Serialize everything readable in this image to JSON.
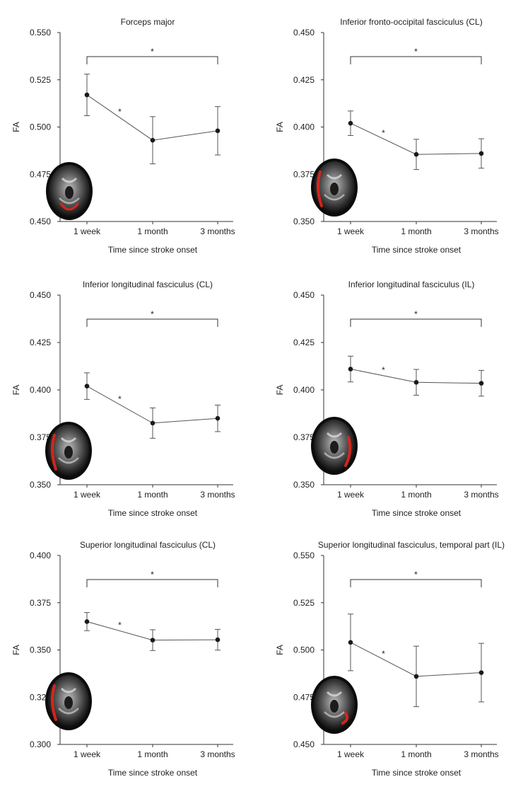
{
  "figure": {
    "common_x_label": "Time since stroke onset",
    "common_y_label": "FA"
  },
  "chart_data": [
    {
      "type": "line",
      "title": "Forceps major",
      "xlabel": "Time since stroke onset",
      "ylabel": "FA",
      "categories": [
        "1 week",
        "1 month",
        "3 months"
      ],
      "values": [
        0.517,
        0.493,
        0.498
      ],
      "errors": [
        0.011,
        0.0125,
        0.0128
      ],
      "ylim": [
        0.45,
        0.55
      ],
      "yticks": [
        "0.450",
        "0.475",
        "0.500",
        "0.525",
        "0.550"
      ],
      "bracket_label": "*",
      "pair_label": "*",
      "brain_highlight": "posterior"
    },
    {
      "type": "line",
      "title": "Inferior fronto-occipital fasciculus (CL)",
      "xlabel": "Time since stroke onset",
      "ylabel": "FA",
      "categories": [
        "1 week",
        "1 month",
        "3 months"
      ],
      "values": [
        0.402,
        0.3855,
        0.386
      ],
      "errors": [
        0.0065,
        0.008,
        0.0078
      ],
      "ylim": [
        0.35,
        0.45
      ],
      "yticks": [
        "0.350",
        "0.375",
        "0.400",
        "0.425",
        "0.450"
      ],
      "bracket_label": "*",
      "pair_label": "*",
      "brain_highlight": "left"
    },
    {
      "type": "line",
      "title": "Inferior longitudinal fasciculus (CL)",
      "xlabel": "Time since stroke onset",
      "ylabel": "FA",
      "categories": [
        "1 week",
        "1 month",
        "3 months"
      ],
      "values": [
        0.402,
        0.3825,
        0.385
      ],
      "errors": [
        0.007,
        0.008,
        0.007
      ],
      "ylim": [
        0.35,
        0.45
      ],
      "yticks": [
        "0.350",
        "0.375",
        "0.400",
        "0.425",
        "0.450"
      ],
      "bracket_label": "*",
      "pair_label": "*",
      "brain_highlight": "left"
    },
    {
      "type": "line",
      "title": "Inferior longitudinal fasciculus (IL)",
      "xlabel": "Time since stroke onset",
      "ylabel": "FA",
      "categories": [
        "1 week",
        "1 month",
        "3 months"
      ],
      "values": [
        0.411,
        0.404,
        0.4035
      ],
      "errors": [
        0.0068,
        0.0068,
        0.0068
      ],
      "ylim": [
        0.35,
        0.45
      ],
      "yticks": [
        "0.350",
        "0.375",
        "0.400",
        "0.425",
        "0.450"
      ],
      "bracket_label": "*",
      "pair_label": "*",
      "brain_highlight": "right"
    },
    {
      "type": "line",
      "title": "Superior longitudinal fasciculus (CL)",
      "xlabel": "Time since stroke onset",
      "ylabel": "FA",
      "categories": [
        "1 week",
        "1 month",
        "3 months"
      ],
      "values": [
        0.365,
        0.3552,
        0.3554
      ],
      "errors": [
        0.0048,
        0.0055,
        0.0055
      ],
      "ylim": [
        0.3,
        0.4
      ],
      "yticks": [
        "0.300",
        "0.325",
        "0.350",
        "0.375",
        "0.400"
      ],
      "bracket_label": "*",
      "pair_label": "*",
      "brain_highlight": "left"
    },
    {
      "type": "line",
      "title": "Superior longitudinal fasciculus, temporal part (IL)",
      "xlabel": "Time since stroke onset",
      "ylabel": "FA",
      "categories": [
        "1 week",
        "1 month",
        "3 months"
      ],
      "values": [
        0.504,
        0.486,
        0.488
      ],
      "errors": [
        0.015,
        0.016,
        0.0155
      ],
      "ylim": [
        0.45,
        0.55
      ],
      "yticks": [
        "0.450",
        "0.475",
        "0.500",
        "0.525",
        "0.550"
      ],
      "bracket_label": "*",
      "pair_label": "*",
      "brain_highlight": "right-lower"
    }
  ],
  "colors": {
    "axis": "#333333",
    "line": "#555555",
    "marker": "#1a1a1a",
    "brain_bg": "#0c0c0c",
    "tract": "#e0261b"
  }
}
